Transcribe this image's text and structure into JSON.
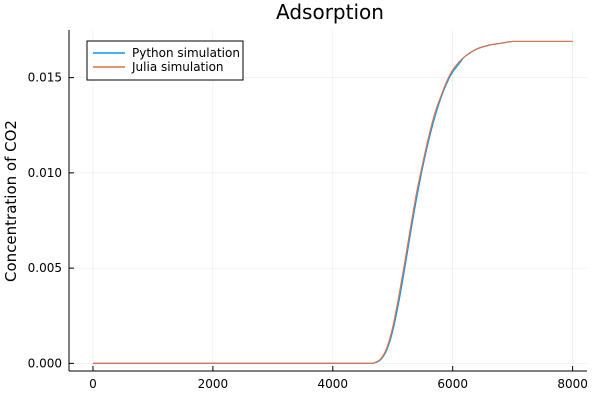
{
  "chart_data": {
    "type": "line",
    "title": "Adsorption",
    "xlabel": "",
    "ylabel": "Concentration of CO2",
    "xlim": [
      -400,
      8240
    ],
    "ylim": [
      -0.0004,
      0.0175
    ],
    "xticks": [
      0,
      2000,
      4000,
      6000,
      8000
    ],
    "xtick_labels": [
      "0",
      "2000",
      "4000",
      "6000",
      "8000"
    ],
    "yticks": [
      0.0,
      0.005,
      0.01,
      0.015
    ],
    "ytick_labels": [
      "0.000",
      "0.005",
      "0.010",
      "0.015"
    ],
    "grid": true,
    "legend_position": "top-left",
    "series": [
      {
        "name": "Python simulation",
        "color": "#009af9",
        "x": [
          0,
          1000,
          2000,
          3000,
          4000,
          4600,
          4700,
          4800,
          4900,
          5000,
          5100,
          5200,
          5300,
          5400,
          5500,
          5600,
          5700,
          5800,
          5900,
          6000,
          6100,
          6200,
          6400,
          6600,
          6800,
          7000,
          7200,
          7500,
          8000
        ],
        "values": [
          0.0,
          0.0,
          0.0,
          0.0,
          0.0,
          0.0,
          3e-05,
          0.0002,
          0.0007,
          0.0017,
          0.0032,
          0.005,
          0.0069,
          0.0087,
          0.0103,
          0.0117,
          0.0129,
          0.0139,
          0.0147,
          0.0153,
          0.0157,
          0.0161,
          0.0165,
          0.0167,
          0.0168,
          0.0169,
          0.0169,
          0.0169,
          0.0169
        ]
      },
      {
        "name": "Julia simulation",
        "color": "#e26f46",
        "x": [
          0,
          1000,
          2000,
          3000,
          4000,
          4600,
          4700,
          4800,
          4900,
          5000,
          5100,
          5200,
          5300,
          5400,
          5500,
          5600,
          5700,
          5800,
          5900,
          6000,
          6100,
          6200,
          6400,
          6600,
          6800,
          7000,
          7200,
          7500,
          8000
        ],
        "values": [
          0.0,
          0.0,
          0.0,
          0.0,
          0.0,
          0.0,
          4e-05,
          0.00024,
          0.0008,
          0.0019,
          0.0035,
          0.0053,
          0.0072,
          0.009,
          0.0105,
          0.0119,
          0.0131,
          0.014,
          0.0148,
          0.0154,
          0.0158,
          0.0161,
          0.0165,
          0.0167,
          0.0168,
          0.0169,
          0.0169,
          0.0169,
          0.0169
        ]
      }
    ]
  }
}
